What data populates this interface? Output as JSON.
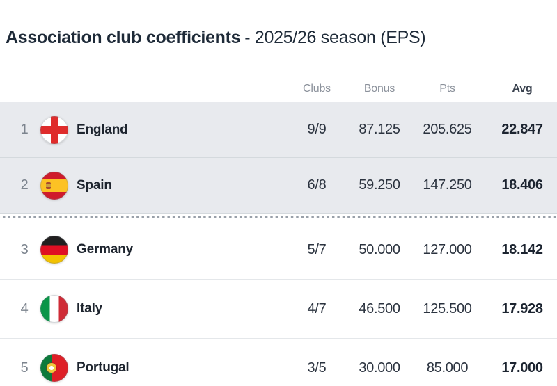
{
  "page_title": {
    "main": "Association club coefficients",
    "suffix": "- 2025/26 season (EPS)"
  },
  "table": {
    "columns": [
      "Clubs",
      "Bonus",
      "Pts",
      "Avg"
    ],
    "rows": [
      {
        "rank": "1",
        "country": "England",
        "flag": "england",
        "clubs": "9/9",
        "bonus": "87.125",
        "pts": "205.625",
        "avg": "22.847",
        "highlighted": true,
        "separator_after": false
      },
      {
        "rank": "2",
        "country": "Spain",
        "flag": "spain",
        "clubs": "6/8",
        "bonus": "59.250",
        "pts": "147.250",
        "avg": "18.406",
        "highlighted": true,
        "separator_after": true
      },
      {
        "rank": "3",
        "country": "Germany",
        "flag": "germany",
        "clubs": "5/7",
        "bonus": "50.000",
        "pts": "127.000",
        "avg": "18.142",
        "highlighted": false,
        "separator_after": false
      },
      {
        "rank": "4",
        "country": "Italy",
        "flag": "italy",
        "clubs": "4/7",
        "bonus": "46.500",
        "pts": "125.500",
        "avg": "17.928",
        "highlighted": false,
        "separator_after": false
      },
      {
        "rank": "5",
        "country": "Portugal",
        "flag": "portugal",
        "clubs": "3/5",
        "bonus": "30.000",
        "pts": "85.000",
        "avg": "17.000",
        "highlighted": false,
        "separator_after": false
      }
    ]
  },
  "colors": {
    "title_text": "#1e2a38",
    "header_text": "#8b919b",
    "highlight_row_bg": "#e8eaee",
    "separator_dot": "#99a0a9"
  }
}
